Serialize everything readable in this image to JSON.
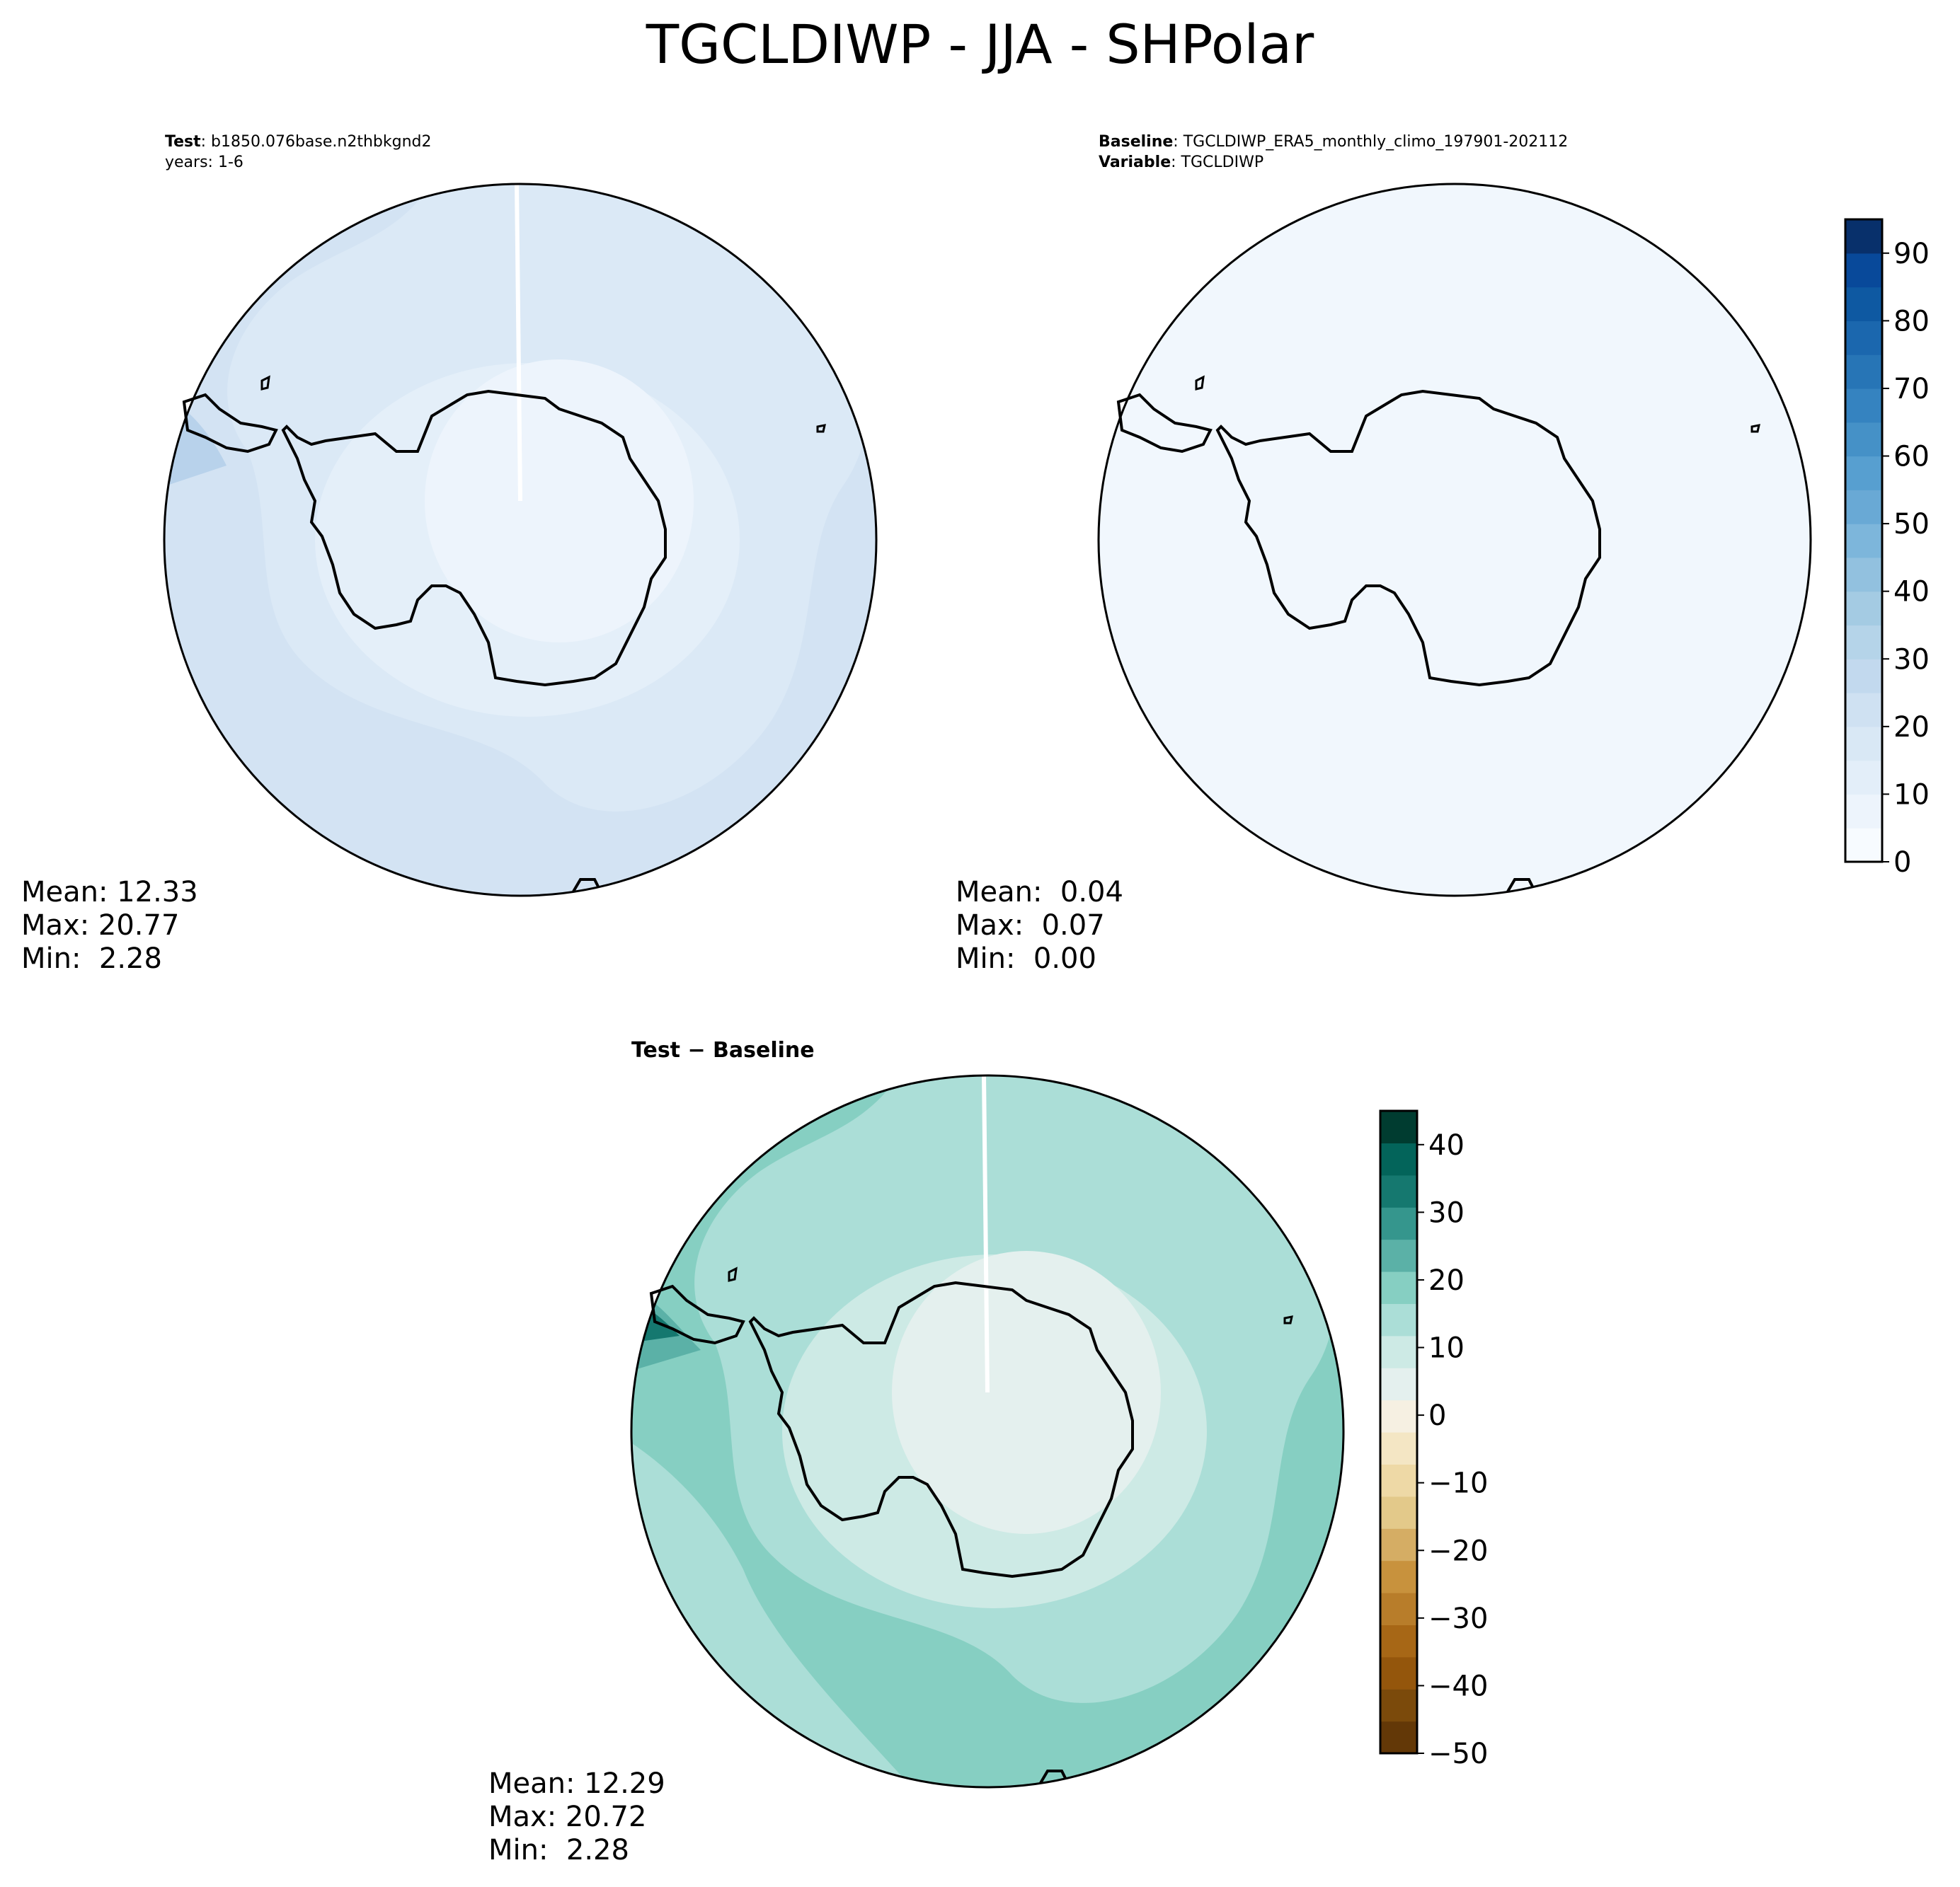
{
  "title": "TGCLDIWP - JJA - SHPolar",
  "panels": {
    "test": {
      "label_bold": "Test",
      "label_rest": ": b1850.076base.n2thbkgnd2",
      "line2": "years: 1-6",
      "stats": {
        "mean": "Mean: 12.33",
        "max": "Max: 20.77",
        "min": "Min:  2.28"
      }
    },
    "baseline": {
      "label_bold": "Baseline",
      "label_rest": ": TGCLDIWP_ERA5_monthly_climo_197901-202112",
      "line2_bold": "Variable",
      "line2_rest": ": TGCLDIWP",
      "stats": {
        "mean": "Mean:  0.04",
        "max": "Max:  0.07",
        "min": "Min:  0.00"
      }
    },
    "diff": {
      "title": "Test − Baseline",
      "stats": {
        "mean": "Mean: 12.29",
        "max": "Max: 20.72",
        "min": "Min:  2.28"
      }
    }
  },
  "colorbars": {
    "main": {
      "range": [
        0,
        95
      ],
      "step": 5,
      "ticks": [
        "0",
        "10",
        "20",
        "30",
        "40",
        "50",
        "60",
        "70",
        "80",
        "90"
      ],
      "colors": [
        "#f7fbff",
        "#edf4fc",
        "#e3eef9",
        "#d9e8f5",
        "#cfe1f2",
        "#c2d9ee",
        "#b5d4e9",
        "#a4cbe3",
        "#92c1df",
        "#7db6db",
        "#69a9d5",
        "#579fd0",
        "#4591c7",
        "#3583c0",
        "#2775b6",
        "#1b67ae",
        "#0e59a2",
        "#08499a",
        "#08306b"
      ]
    },
    "diff": {
      "range": [
        -50,
        45
      ],
      "step": 5,
      "ticks": [
        "−50",
        "−40",
        "−30",
        "−20",
        "−10",
        "0",
        "10",
        "20",
        "30",
        "40"
      ],
      "colors": [
        "#633807",
        "#7b4a0b",
        "#94560c",
        "#a76716",
        "#b87d2a",
        "#c8923d",
        "#d5ad64",
        "#e3c98a",
        "#eed9a6",
        "#f4e6c4",
        "#f6f0e2",
        "#e4f0ee",
        "#cdeae5",
        "#abded7",
        "#86cfc2",
        "#5bb1a7",
        "#35968d",
        "#15786f",
        "#03645a",
        "#003c30"
      ]
    }
  }
}
